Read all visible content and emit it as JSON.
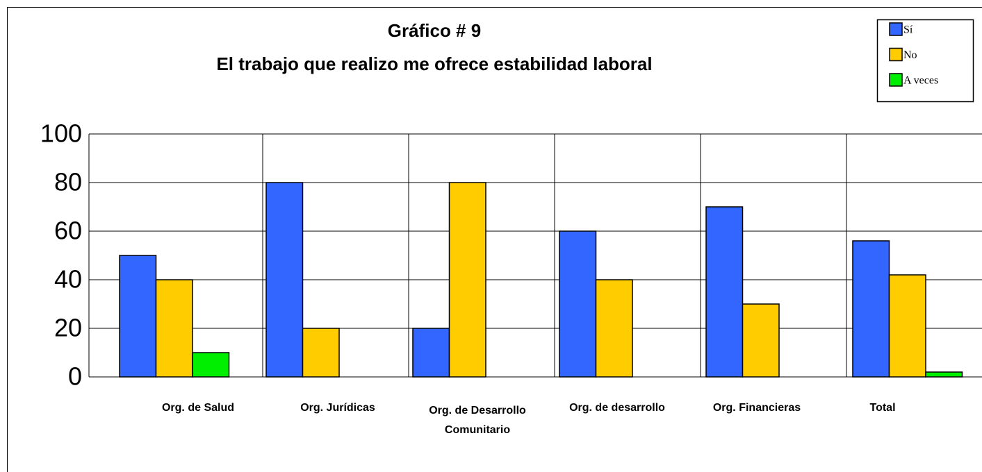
{
  "chart_data": {
    "type": "bar",
    "title": "Gráfico # 9",
    "subtitle": "El trabajo que realizo me ofrece estabilidad laboral",
    "categories": [
      "Org. de Salud",
      "Org. Jurídicas",
      "Org. de Desarrollo Comunitario",
      "Org. de desarrollo",
      "Org. Financieras",
      "Total"
    ],
    "series": [
      {
        "name": "Sí",
        "color": "#3366ff",
        "values": [
          50,
          80,
          20,
          60,
          70,
          56
        ]
      },
      {
        "name": "No",
        "color": "#ffcc00",
        "values": [
          40,
          20,
          80,
          40,
          30,
          42
        ]
      },
      {
        "name": "A veces",
        "color": "#00ee00",
        "values": [
          10,
          0,
          0,
          0,
          0,
          2
        ]
      }
    ],
    "ylim": [
      0,
      100
    ],
    "yticks": [
      0,
      20,
      40,
      60,
      80,
      100
    ],
    "grid": true,
    "legend": "top-right"
  }
}
